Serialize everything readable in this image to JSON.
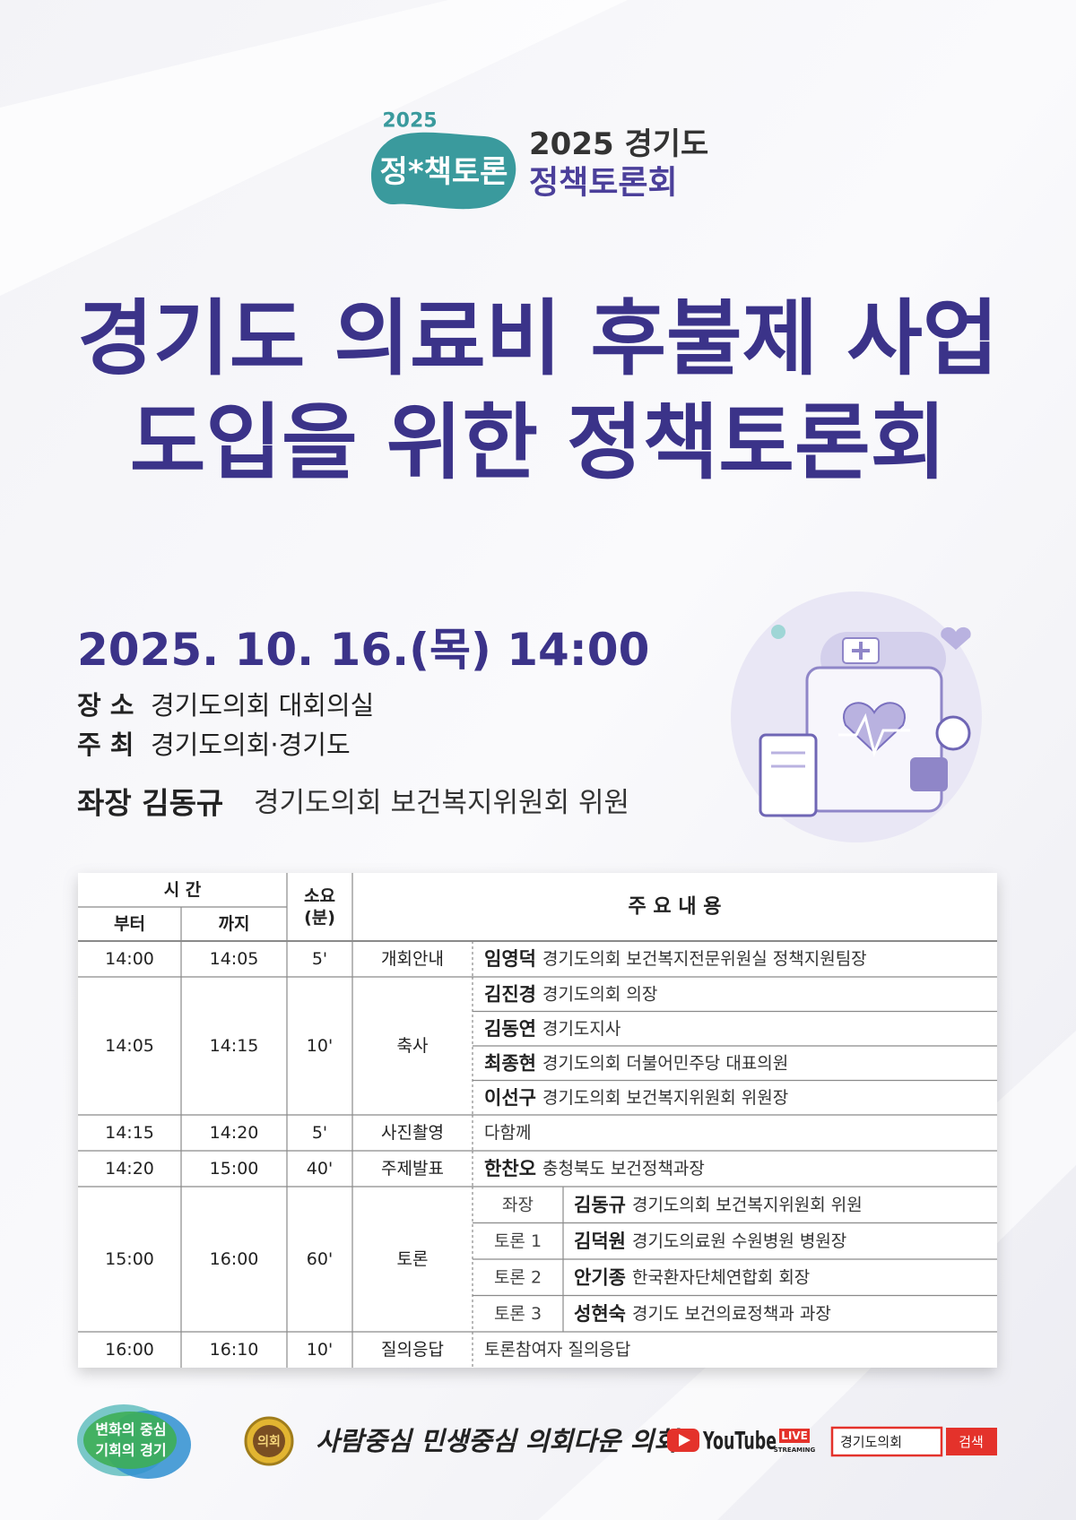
{
  "logo": {
    "year": "2025",
    "mark": "정*책토론",
    "title_line1": "2025 경기도",
    "title_line2": "정책토론회"
  },
  "title": [
    "경기도 의료비 후불제 사업",
    "도입을 위한 정책토론회"
  ],
  "datetime": "2025. 10. 16.(목) 14:00",
  "info": [
    {
      "label": "장 소",
      "value": "경기도의회 대회의실"
    },
    {
      "label": "주 최",
      "value": "경기도의회·경기도"
    }
  ],
  "chair": {
    "label": "좌장 김동규",
    "value": "경기도의회 보건복지위원회 위원"
  },
  "table": {
    "header": {
      "time": "시 간",
      "from": "부터",
      "to": "까지",
      "duration": [
        "소요",
        "(분)"
      ],
      "content": "주 요 내 용"
    },
    "rows": [
      {
        "from": "14:00",
        "to": "14:05",
        "duration": "5'",
        "section": "개회안내",
        "items": [
          {
            "name": "임영덕",
            "desc": "경기도의회 보건복지전문위원실 정책지원팀장"
          }
        ]
      },
      {
        "from": "14:05",
        "to": "14:15",
        "duration": "10'",
        "section": "축사",
        "items": [
          {
            "name": "김진경",
            "desc": "경기도의회 의장"
          },
          {
            "name": "김동연",
            "desc": "경기도지사"
          },
          {
            "name": "최종현",
            "desc": "경기도의회 더불어민주당 대표의원"
          },
          {
            "name": "이선구",
            "desc": "경기도의회 보건복지위원회 위원장"
          }
        ]
      },
      {
        "from": "14:15",
        "to": "14:20",
        "duration": "5'",
        "section": "사진촬영",
        "items": [
          {
            "desc": "다함께"
          }
        ]
      },
      {
        "from": "14:20",
        "to": "15:00",
        "duration": "40'",
        "section": "주제발표",
        "items": [
          {
            "name": "한찬오",
            "desc": "충청북도 보건정책과장"
          }
        ]
      },
      {
        "from": "15:00",
        "to": "16:00",
        "duration": "60'",
        "section": "토론",
        "items": [
          {
            "role": "좌장",
            "name": "김동규",
            "desc": "경기도의회 보건복지위원회 위원"
          },
          {
            "role": "토론 1",
            "name": "김덕원",
            "desc": "경기도의료원 수원병원 병원장"
          },
          {
            "role": "토론 2",
            "name": "안기종",
            "desc": "한국환자단체연합회 회장"
          },
          {
            "role": "토론 3",
            "name": "성현숙",
            "desc": "경기도 보건의료정책과 과장"
          }
        ]
      },
      {
        "from": "16:00",
        "to": "16:10",
        "duration": "10'",
        "section": "질의응답",
        "items": [
          {
            "desc": "토론참여자 질의응답"
          }
        ]
      }
    ]
  },
  "footer": {
    "badge": [
      "변화의 중심",
      "기회의 경기"
    ],
    "seal": "의회",
    "slogan": "사람중심 민생중심 의회다운 의회",
    "youtube": {
      "brand": "YouTube",
      "live": "LIVE",
      "streaming": "STREAMING",
      "search_text": "경기도의회",
      "button": "검색"
    }
  }
}
